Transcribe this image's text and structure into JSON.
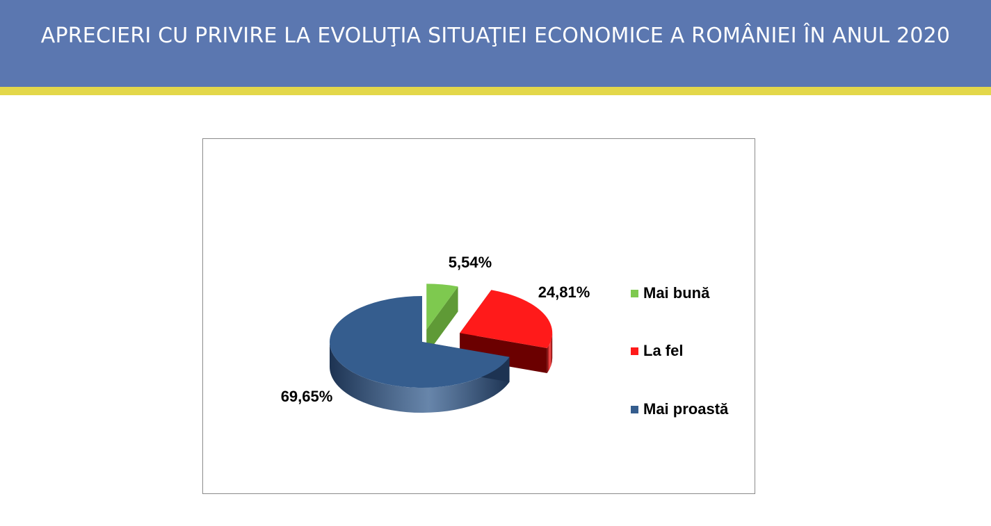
{
  "header": {
    "title": "APRECIERI CU PRIVIRE LA EVOLUŢIA SITUAŢIEI ECONOMICE A ROMÂNIEI ÎN ANUL 2020",
    "bg_color": "#5b77b0",
    "stripe_color": "#e3d74a"
  },
  "chart_data": {
    "type": "pie",
    "title": "",
    "legend_position": "right",
    "categories": [
      "Mai bună",
      "La fel",
      "Mai proastă"
    ],
    "values": [
      5.54,
      24.81,
      69.65
    ],
    "labels": [
      "5,54%",
      "24,81%",
      "69,65%"
    ],
    "colors": [
      "#7ec94f",
      "#ff1a1a",
      "#355d8e"
    ],
    "side_colors": [
      "#5f9a36",
      "#6b0000",
      "#1d3352"
    ],
    "exploded": true,
    "style": "3d"
  }
}
